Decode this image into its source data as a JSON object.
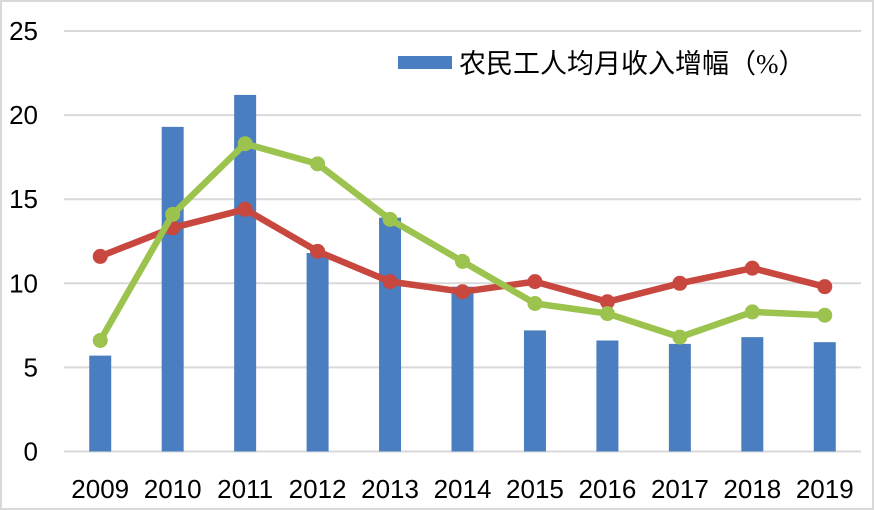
{
  "page": {
    "background": "#FFFFFF",
    "frame_border_color": "#D9D9D9"
  },
  "chart_data": {
    "type": "bar+line",
    "categories": [
      "2009",
      "2010",
      "2011",
      "2012",
      "2013",
      "2014",
      "2015",
      "2016",
      "2017",
      "2018",
      "2019"
    ],
    "series": [
      {
        "name": "migrant-worker-income-growth-bars",
        "label": "农民工人均月收入增幅（%）",
        "type": "bar",
        "color": "#4A7EC0",
        "values": [
          5.7,
          19.3,
          21.2,
          11.8,
          13.9,
          9.8,
          7.2,
          6.6,
          6.4,
          6.8,
          6.5
        ]
      },
      {
        "name": "red-line",
        "type": "line",
        "color": "#C8473E",
        "values": [
          11.6,
          13.3,
          14.4,
          11.9,
          10.1,
          9.5,
          10.1,
          8.9,
          10.0,
          10.9,
          9.8
        ]
      },
      {
        "name": "green-line",
        "type": "line",
        "color": "#9CC34D",
        "values": [
          6.6,
          14.1,
          18.3,
          17.1,
          13.8,
          11.3,
          8.8,
          8.2,
          6.8,
          8.3,
          8.1
        ]
      }
    ],
    "legend": {
      "position": "top-center",
      "entries": [
        {
          "label": "农民工人均月收入增幅（%）",
          "swatch_color": "#4A7EC0",
          "series": "migrant-worker-income-growth-bars"
        }
      ]
    },
    "y_axis": {
      "range": [
        0,
        25
      ],
      "ticks": [
        0,
        5,
        10,
        15,
        20,
        25
      ],
      "grid": true,
      "grid_color": "#D9D9D9",
      "tick_label_color": "#000000"
    },
    "x_axis": {
      "tick_label_color": "#000000"
    }
  }
}
